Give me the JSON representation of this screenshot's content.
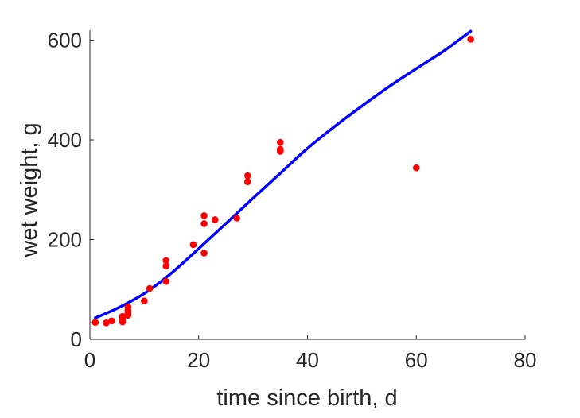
{
  "chart_data": {
    "type": "scatter",
    "xlabel": "time since birth, d",
    "ylabel": "wet weight, g",
    "xlim": [
      0,
      80
    ],
    "ylim": [
      0,
      620
    ],
    "xticks": [
      0,
      20,
      40,
      60,
      80
    ],
    "yticks": [
      0,
      200,
      400,
      600
    ],
    "grid": false,
    "colors": {
      "points": "#ff0000",
      "curve": "#0000ff",
      "axes": "#262626"
    },
    "series": [
      {
        "kind": "points",
        "x": [
          1,
          3,
          4,
          6,
          6,
          6,
          7,
          7,
          7,
          7,
          10,
          11,
          14,
          14,
          14,
          19,
          21,
          21,
          21,
          23,
          27,
          29,
          29,
          35,
          35,
          35,
          60,
          70
        ],
        "y": [
          34,
          33,
          37,
          35,
          42,
          46,
          48,
          53,
          58,
          65,
          77,
          102,
          116,
          147,
          158,
          190,
          173,
          232,
          248,
          240,
          243,
          316,
          328,
          377,
          381,
          395,
          344,
          602
        ]
      },
      {
        "kind": "curve",
        "x": [
          1,
          5,
          10,
          15,
          20,
          25,
          30,
          35,
          40,
          45,
          50,
          55,
          60,
          65,
          70
        ],
        "y": [
          43,
          62,
          92,
          133,
          182,
          232,
          283,
          333,
          383,
          427,
          468,
          507,
          543,
          578,
          618
        ]
      }
    ]
  }
}
